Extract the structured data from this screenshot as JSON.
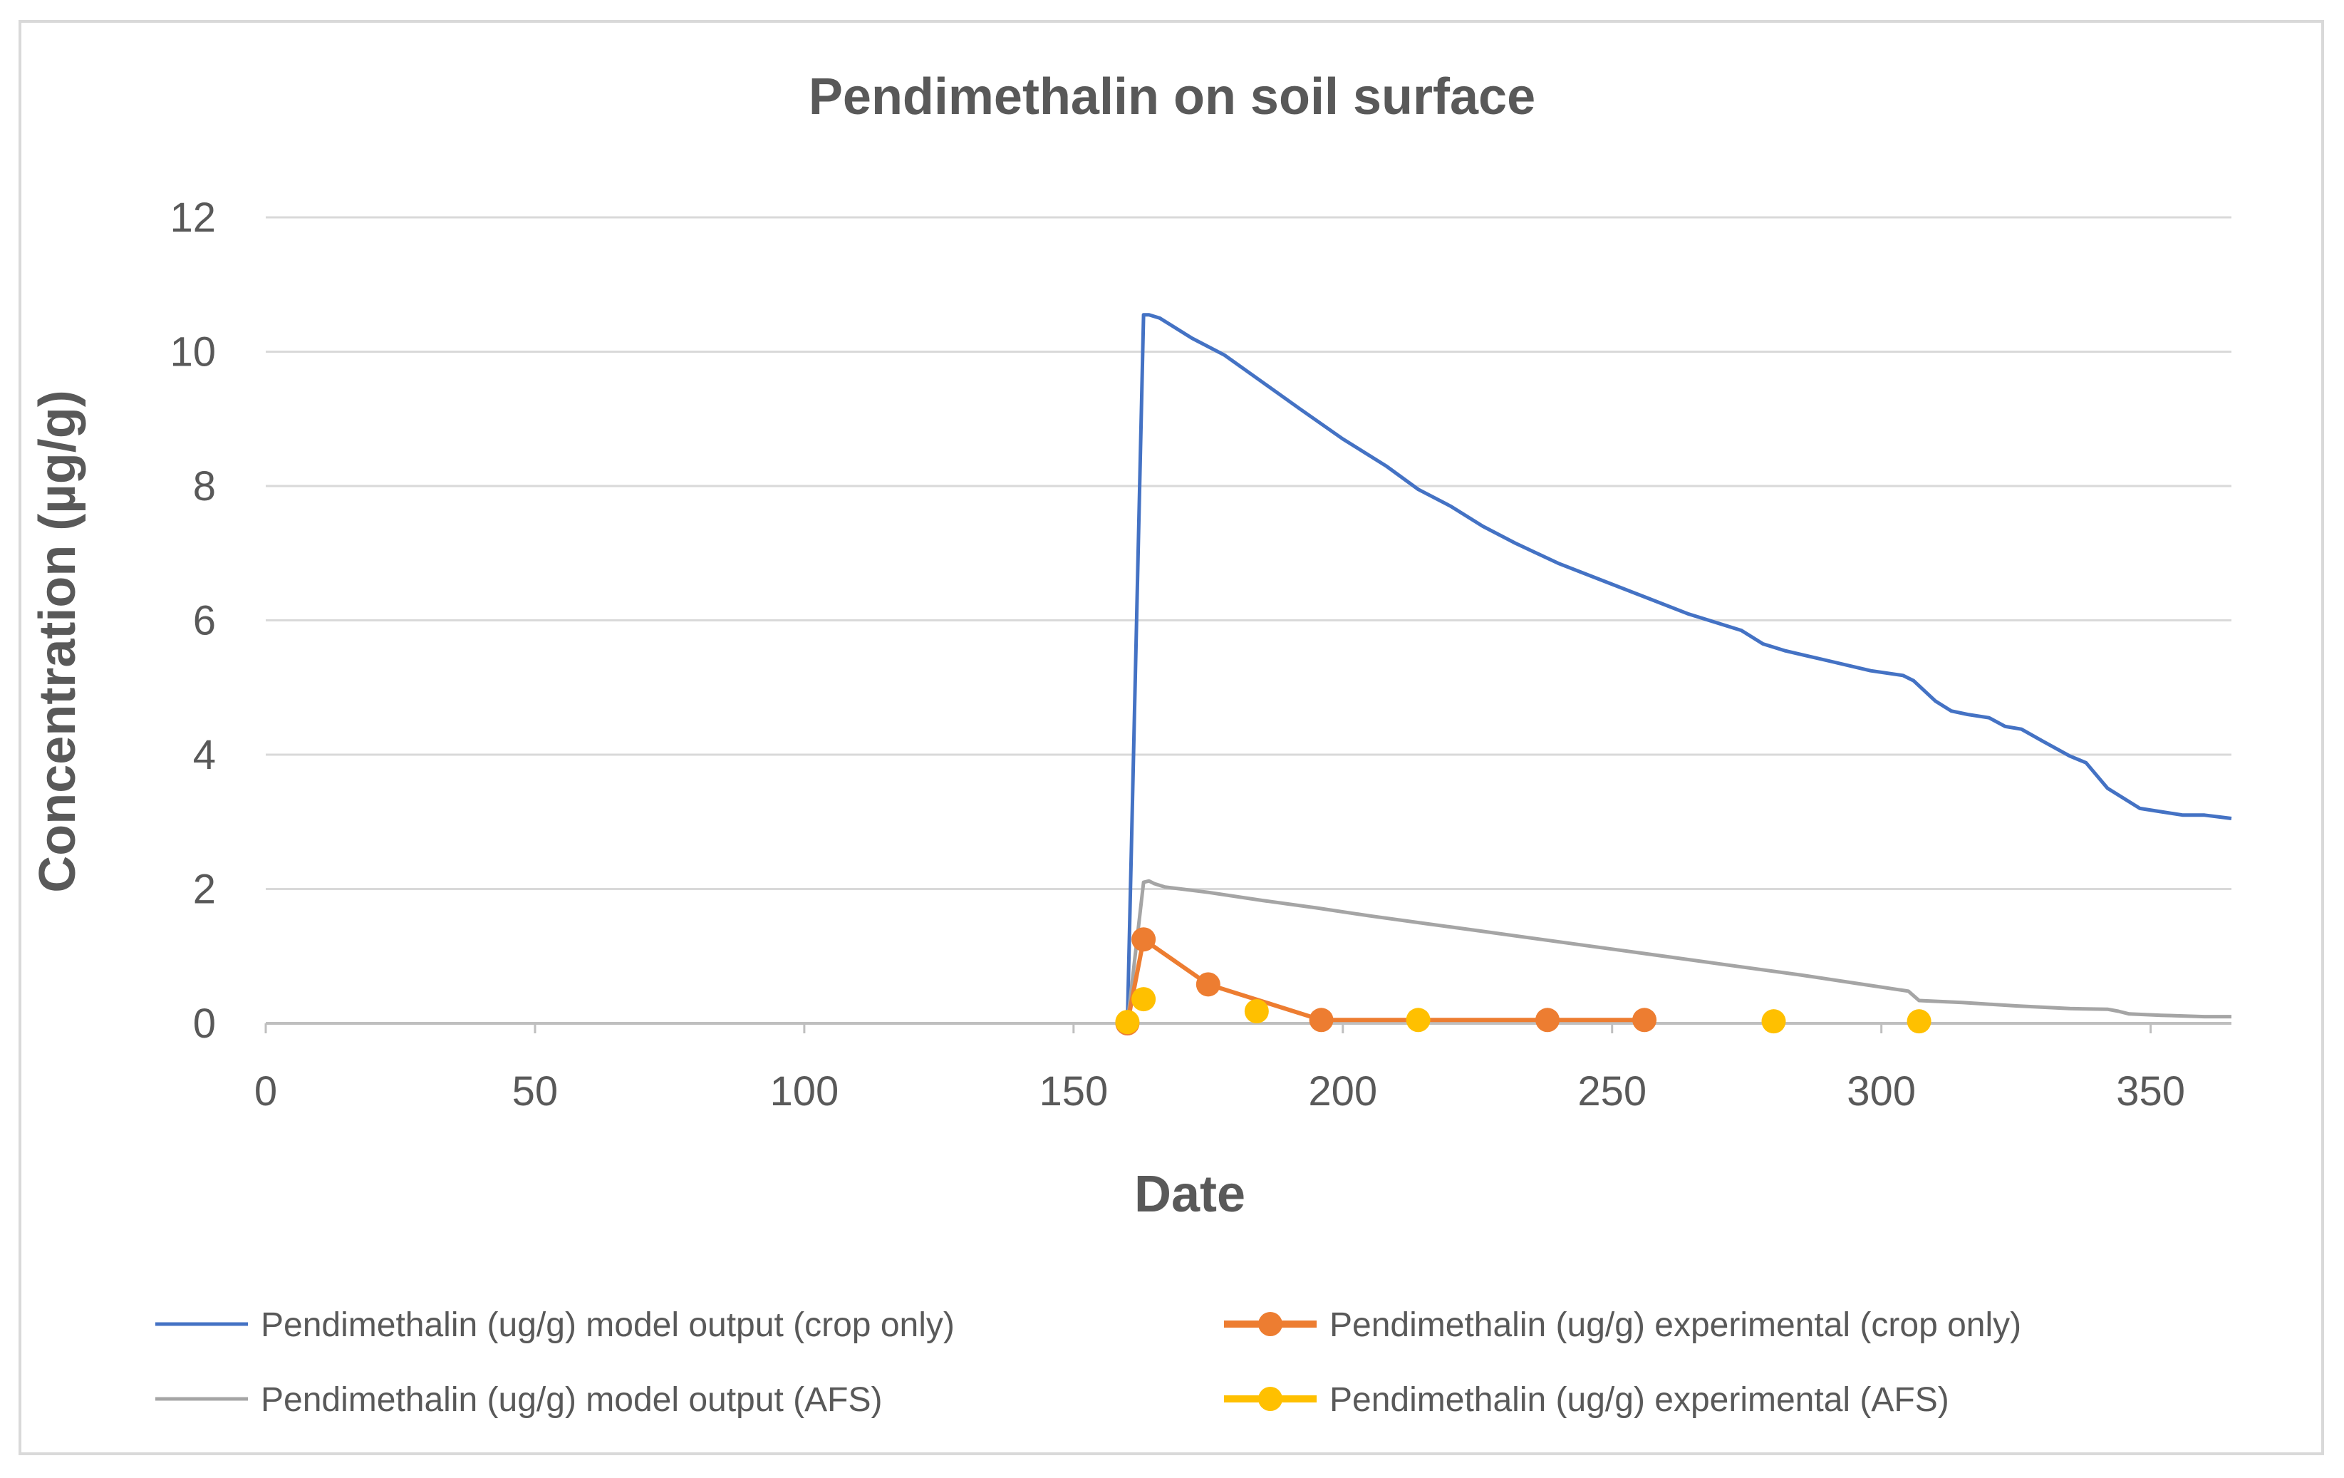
{
  "chart_data": {
    "type": "line",
    "title": "Pendimethalin on soil surface",
    "xlabel": "Date",
    "ylabel": "Concentration (µg/g)",
    "xlim": [
      0,
      365
    ],
    "ylim": [
      0,
      12
    ],
    "xticks": [
      0,
      50,
      100,
      150,
      200,
      250,
      300,
      350
    ],
    "yticks": [
      0,
      2,
      4,
      6,
      8,
      10,
      12
    ],
    "grid": "horizontal",
    "legend_position": "bottom",
    "series": [
      {
        "name": "Pendimethalin (ug/g) model output (crop only)",
        "kind": "line",
        "color": "#4472c4",
        "x": [
          160,
          163,
          164,
          166,
          168,
          172,
          178,
          185,
          192,
          200,
          208,
          214,
          220,
          226,
          232,
          240,
          248,
          256,
          264,
          270,
          274,
          278,
          282,
          290,
          298,
          304,
          306,
          310,
          313,
          316,
          320,
          323,
          326,
          330,
          335,
          338,
          342,
          345,
          348,
          352,
          356,
          360,
          365
        ],
        "y": [
          0,
          10.55,
          10.55,
          10.5,
          10.4,
          10.2,
          9.95,
          9.55,
          9.15,
          8.7,
          8.3,
          7.95,
          7.7,
          7.4,
          7.15,
          6.85,
          6.6,
          6.35,
          6.1,
          5.95,
          5.85,
          5.65,
          5.55,
          5.4,
          5.25,
          5.18,
          5.1,
          4.8,
          4.65,
          4.6,
          4.55,
          4.42,
          4.38,
          4.2,
          3.98,
          3.88,
          3.5,
          3.35,
          3.2,
          3.15,
          3.1,
          3.1,
          3.05
        ]
      },
      {
        "name": "Pendimethalin (ug/g) experimental (crop only)",
        "kind": "line+markers",
        "color": "#ed7d31",
        "x": [
          160,
          163,
          175,
          196,
          238,
          256
        ],
        "y": [
          0.0,
          1.25,
          0.58,
          0.05,
          0.05,
          0.05
        ]
      },
      {
        "name": "Pendimethalin (ug/g) model output (AFS)",
        "kind": "line",
        "color": "#a5a5a5",
        "x": [
          160,
          163,
          164,
          165,
          167,
          175,
          185,
          195,
          205,
          215,
          225,
          235,
          245,
          255,
          265,
          275,
          285,
          295,
          305,
          307,
          315,
          325,
          335,
          342,
          344,
          346,
          352,
          360,
          365
        ],
        "y": [
          0,
          2.1,
          2.12,
          2.08,
          2.03,
          1.95,
          1.83,
          1.72,
          1.6,
          1.49,
          1.38,
          1.27,
          1.16,
          1.05,
          0.94,
          0.83,
          0.72,
          0.6,
          0.48,
          0.34,
          0.31,
          0.26,
          0.22,
          0.21,
          0.18,
          0.14,
          0.12,
          0.1,
          0.1
        ]
      },
      {
        "name": "Pendimethalin (ug/g) experimental (AFS)",
        "kind": "markers",
        "color": "#ffc000",
        "x": [
          160,
          163,
          184,
          214,
          280,
          307
        ],
        "y": [
          0.02,
          0.36,
          0.18,
          0.05,
          0.03,
          0.03
        ]
      }
    ]
  }
}
